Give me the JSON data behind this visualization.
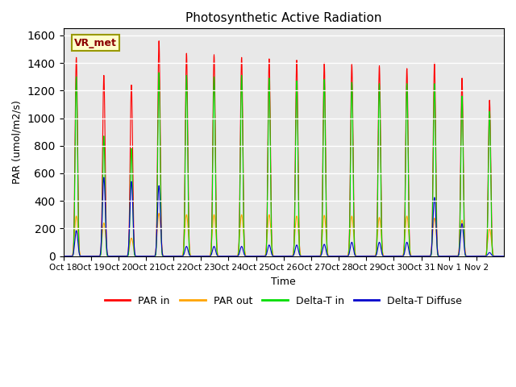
{
  "title": "Photosynthetic Active Radiation",
  "ylabel": "PAR (umol/m2/s)",
  "xlabel": "Time",
  "ylim": [
    0,
    1650
  ],
  "yticks": [
    0,
    200,
    400,
    600,
    800,
    1000,
    1200,
    1400,
    1600
  ],
  "xtick_labels": [
    "Oct 18",
    "Oct 19",
    "Oct 20",
    "Oct 21",
    "Oct 22",
    "Oct 23",
    "Oct 24",
    "Oct 25",
    "Oct 26",
    "Oct 27",
    "Oct 28",
    "Oct 29",
    "Oct 30",
    "Oct 31",
    "Nov 1",
    "Nov 2"
  ],
  "bg_color": "#e8e8e8",
  "label_box": "VR_met",
  "colors": {
    "par_in": "#ff0000",
    "par_out": "#ffa500",
    "delta_t_in": "#00dd00",
    "delta_t_diffuse": "#0000cc"
  },
  "legend_labels": [
    "PAR in",
    "PAR out",
    "Delta-T in",
    "Delta-T Diffuse"
  ],
  "n_days": 16,
  "points_per_day": 144,
  "day_peaks_par_in": [
    1440,
    1310,
    1240,
    1560,
    1470,
    1460,
    1440,
    1430,
    1420,
    1400,
    1390,
    1380,
    1360,
    1400,
    1290,
    1130
  ],
  "day_peaks_par_out": [
    290,
    240,
    130,
    310,
    300,
    300,
    300,
    300,
    290,
    295,
    290,
    280,
    290,
    275,
    260,
    200
  ],
  "day_peaks_delta_t_in": [
    1300,
    870,
    780,
    1330,
    1310,
    1300,
    1310,
    1290,
    1270,
    1280,
    1260,
    1250,
    1250,
    1250,
    1160,
    1050
  ],
  "day_peaks_delta_t_diffuse": [
    185,
    570,
    540,
    510,
    70,
    70,
    70,
    80,
    80,
    85,
    100,
    100,
    100,
    425,
    235,
    25
  ]
}
